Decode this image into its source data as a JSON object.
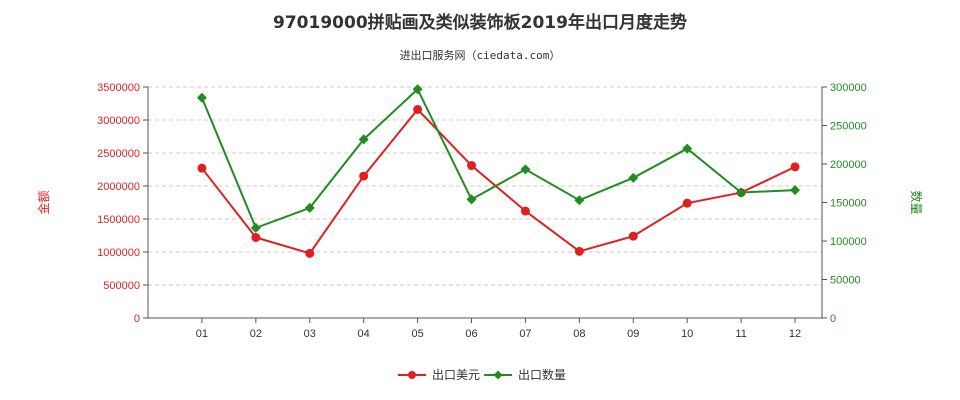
{
  "chart_data": {
    "type": "line",
    "title": "97019000拼贴画及类似装饰板2019年出口月度走势",
    "subtitle": "进出口服务网（ciedata.com）",
    "categories": [
      "01",
      "02",
      "03",
      "04",
      "05",
      "06",
      "07",
      "08",
      "09",
      "10",
      "11",
      "12"
    ],
    "left_axis": {
      "label": "金额",
      "ylim": [
        0,
        3500000
      ],
      "ticks": [
        "0",
        "500000",
        "1000000",
        "1500000",
        "2000000",
        "2500000",
        "3000000",
        "3500000"
      ],
      "color": "#e02020"
    },
    "right_axis": {
      "label": "数量",
      "ylim": [
        0,
        300000
      ],
      "ticks": [
        "0",
        "50000",
        "100000",
        "150000",
        "200000",
        "250000",
        "300000"
      ],
      "color": "#228b22"
    },
    "series": [
      {
        "name": "出口美元",
        "axis": "left",
        "color": "#e02020",
        "values": [
          2270000,
          1220000,
          980000,
          2150000,
          3160000,
          2310000,
          1620000,
          1010000,
          1240000,
          1740000,
          1900000,
          2290000
        ]
      },
      {
        "name": "出口数量",
        "axis": "right",
        "color": "#228b22",
        "values": [
          286000,
          117000,
          143000,
          232000,
          297000,
          154000,
          193000,
          153000,
          182000,
          220000,
          163000,
          166000
        ]
      }
    ],
    "grid": "horizontal dashed",
    "legend_position": "bottom-center"
  }
}
